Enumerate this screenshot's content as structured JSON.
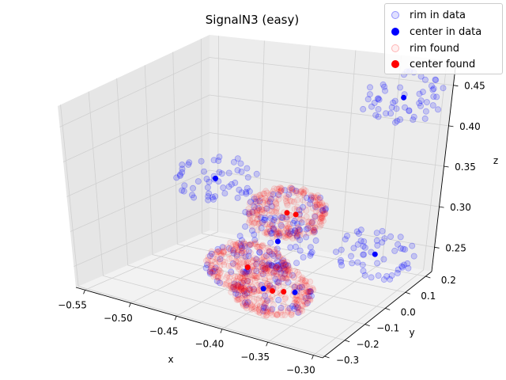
{
  "chart_data": {
    "type": "scatter",
    "title": "SignalN3 (easy)",
    "xlabel": "x",
    "ylabel": "y",
    "zlabel": "z",
    "xlim": [
      -0.56,
      -0.29
    ],
    "ylim": [
      -0.31,
      0.23
    ],
    "zlim": [
      0.22,
      0.48
    ],
    "x_ticks": [
      "−0.55",
      "−0.50",
      "−0.45",
      "−0.40",
      "−0.35",
      "−0.30"
    ],
    "y_ticks": [
      "−0.3",
      "−0.2",
      "−0.1",
      "0.0",
      "0.1",
      "0.2"
    ],
    "z_ticks": [
      "0.25",
      "0.30",
      "0.35",
      "0.40",
      "0.45"
    ],
    "grid": true,
    "legend_position": "top-right",
    "series": [
      {
        "name": "rim in data",
        "color": "#0000ff",
        "marker": "open-circle"
      },
      {
        "name": "center in data",
        "color": "#0000ff",
        "marker": "filled-circle"
      },
      {
        "name": "rim found",
        "color": "#ff0000",
        "marker": "open-circle"
      },
      {
        "name": "center found",
        "color": "#ff0000",
        "marker": "filled-circle"
      }
    ],
    "centers_in_data": [
      {
        "x": -0.5,
        "y": 0.05,
        "z": 0.33
      },
      {
        "x": -0.33,
        "y": 0.18,
        "z": 0.44
      },
      {
        "x": -0.3,
        "y": -0.02,
        "z": 0.29
      },
      {
        "x": -0.41,
        "y": -0.02,
        "z": 0.28
      },
      {
        "x": -0.41,
        "y": -0.15,
        "z": 0.27
      },
      {
        "x": -0.35,
        "y": -0.18,
        "z": 0.26
      },
      {
        "x": -0.38,
        "y": -0.2,
        "z": 0.26
      }
    ],
    "centers_found": [
      {
        "x": -0.4,
        "y": -0.02,
        "z": 0.32
      },
      {
        "x": -0.39,
        "y": -0.02,
        "z": 0.32
      },
      {
        "x": -0.41,
        "y": -0.15,
        "z": 0.27
      },
      {
        "x": -0.37,
        "y": -0.2,
        "z": 0.26
      },
      {
        "x": -0.36,
        "y": -0.19,
        "z": 0.26
      }
    ],
    "rims_in_data": [
      {
        "center": {
          "x": -0.5,
          "y": 0.05,
          "z": 0.33
        },
        "radius": 0.05
      },
      {
        "center": {
          "x": -0.33,
          "y": 0.18,
          "z": 0.44
        },
        "radius": 0.05
      },
      {
        "center": {
          "x": -0.3,
          "y": -0.02,
          "z": 0.29
        },
        "radius": 0.05
      },
      {
        "center": {
          "x": -0.41,
          "y": -0.02,
          "z": 0.28
        },
        "radius": 0.05
      },
      {
        "center": {
          "x": -0.4,
          "y": -0.02,
          "z": 0.32
        },
        "radius": 0.05
      },
      {
        "center": {
          "x": -0.41,
          "y": -0.15,
          "z": 0.27
        },
        "radius": 0.05
      },
      {
        "center": {
          "x": -0.37,
          "y": -0.2,
          "z": 0.26
        },
        "radius": 0.05
      }
    ],
    "rims_found": [
      {
        "center": {
          "x": -0.4,
          "y": -0.02,
          "z": 0.32
        },
        "radius": 0.05
      },
      {
        "center": {
          "x": -0.41,
          "y": -0.15,
          "z": 0.27
        },
        "radius": 0.05
      },
      {
        "center": {
          "x": -0.37,
          "y": -0.2,
          "z": 0.26
        },
        "radius": 0.05
      }
    ]
  }
}
